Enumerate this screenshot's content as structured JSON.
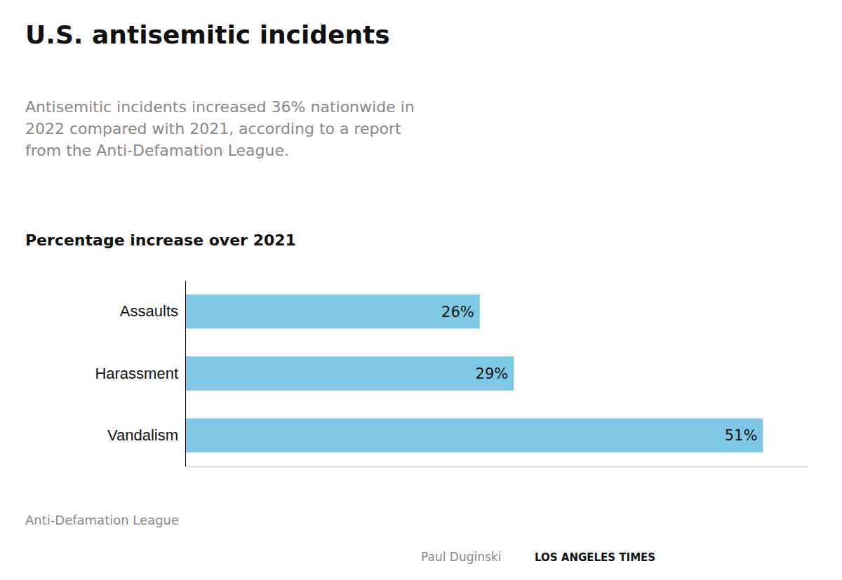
{
  "chart_data": {
    "type": "bar",
    "orientation": "horizontal",
    "title": "U.S. antisemitic incidents",
    "subtitle": [
      "Antisemitic incidents increased 36% nationwide in",
      "2022 compared with 2021, according to a report",
      "from the Anti-Defamation League."
    ],
    "annotations": [
      "Percentage increase over 2021",
      "Anti-Defamation League",
      "Paul Duginski",
      "LOS ANGELES TIMES"
    ],
    "categories": [
      "Assaults",
      "Harassment",
      "Vandalism"
    ],
    "values": [
      26,
      29,
      51
    ],
    "value_labels": [
      "26%",
      "29%",
      "51%"
    ],
    "data_labels": true,
    "color": "#7ec8e3",
    "xlim": [
      0,
      55
    ],
    "tick_labels": "y",
    "grid": false
  }
}
